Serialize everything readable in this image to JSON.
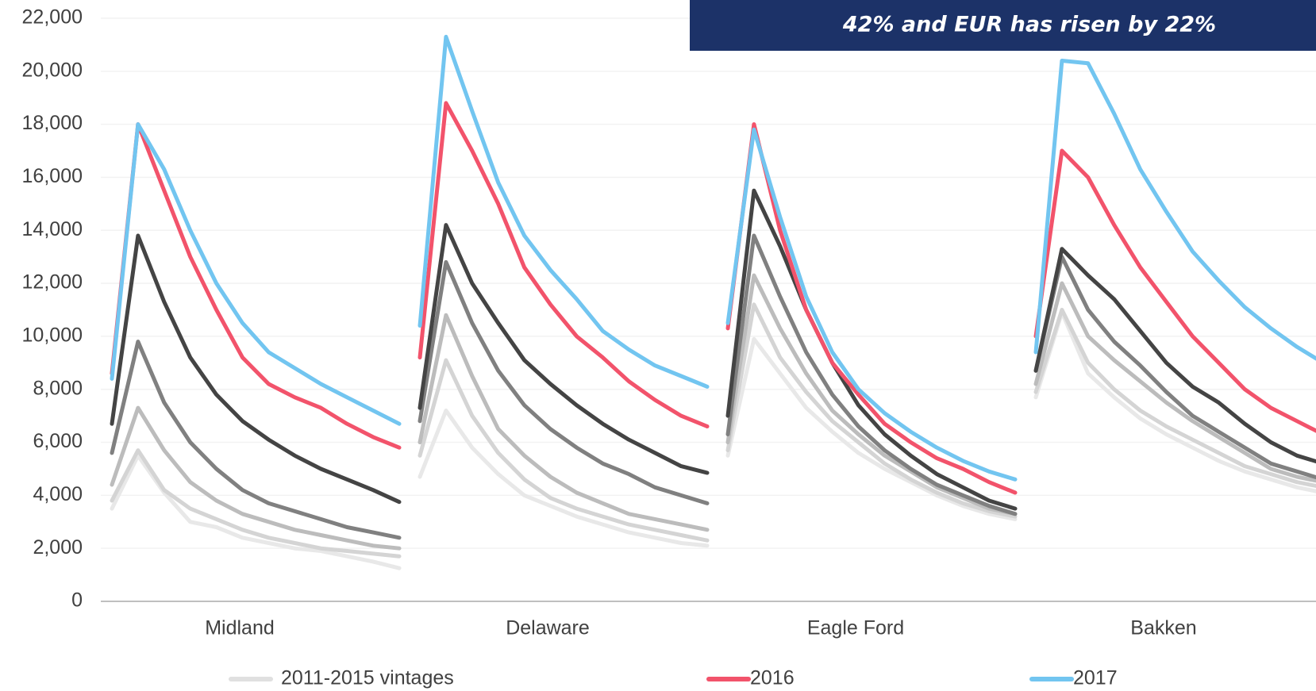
{
  "chart_data": {
    "type": "line",
    "title": "42% and EUR has risen by 22%",
    "categories": [
      "Midland",
      "Delaware",
      "Eagle Ford",
      "Bakken"
    ],
    "ylim": [
      0,
      22000
    ],
    "yticks": [
      0,
      {
        "value": 2000,
        "label": "2,000"
      },
      {
        "value": 4000,
        "label": "4,000"
      },
      {
        "value": 6000,
        "label": "6,000"
      },
      {
        "value": 8000,
        "label": "8,000"
      },
      {
        "value": 10000,
        "label": "10,000"
      },
      {
        "value": 12000,
        "label": "12,000"
      },
      {
        "value": 14000,
        "label": "14,000"
      },
      {
        "value": 16000,
        "label": "16,000"
      },
      {
        "value": 18000,
        "label": "18,000"
      },
      {
        "value": 20000,
        "label": "20,000"
      },
      {
        "value": 22000,
        "label": "22,000"
      }
    ],
    "grid": true,
    "legend": [
      {
        "name": "2011-2015 vintages",
        "color": "#e0e0e0"
      },
      {
        "name": "2016",
        "color": "#f2536b"
      },
      {
        "name": "2017",
        "color": "#72c5f0"
      }
    ],
    "series": [
      {
        "color": "#e8e8e8",
        "values": [
          [
            3500,
            5500,
            4100,
            3000,
            2800,
            2400,
            2200,
            2000,
            1900,
            1700,
            1500,
            1250
          ],
          [
            4700,
            7200,
            5800,
            4800,
            4000,
            3600,
            3200,
            2900,
            2600,
            2400,
            2200,
            2100
          ],
          [
            5500,
            9900,
            8600,
            7300,
            6400,
            5600,
            5000,
            4500,
            4000,
            3600,
            3300,
            3100
          ],
          [
            7700,
            10900,
            8600,
            7700,
            6900,
            6300,
            5800,
            5300,
            4900,
            4600,
            4300,
            4100
          ]
        ]
      },
      {
        "color": "#d4d4d4",
        "values": [
          [
            3800,
            5700,
            4200,
            3500,
            3100,
            2700,
            2400,
            2200,
            2000,
            1900,
            1800,
            1700
          ],
          [
            5500,
            9100,
            7000,
            5600,
            4600,
            3900,
            3500,
            3200,
            2900,
            2700,
            2500,
            2300
          ],
          [
            5700,
            11200,
            9200,
            7900,
            6800,
            6000,
            5200,
            4600,
            4100,
            3700,
            3400,
            3200
          ],
          [
            7900,
            11000,
            9000,
            8000,
            7200,
            6600,
            6100,
            5600,
            5100,
            4800,
            4500,
            4300
          ]
        ]
      },
      {
        "color": "#bcbcbc",
        "values": [
          [
            4400,
            7300,
            5700,
            4500,
            3800,
            3300,
            3000,
            2700,
            2500,
            2300,
            2100,
            2000
          ],
          [
            6000,
            10800,
            8500,
            6500,
            5500,
            4700,
            4100,
            3700,
            3300,
            3100,
            2900,
            2700
          ],
          [
            6000,
            12300,
            10300,
            8600,
            7200,
            6300,
            5500,
            4900,
            4300,
            3900,
            3500,
            3300
          ],
          [
            8200,
            12000,
            10000,
            9100,
            8300,
            7500,
            6800,
            6200,
            5600,
            5000,
            4700,
            4500
          ]
        ]
      },
      {
        "color": "#808080",
        "values": [
          [
            5600,
            9800,
            7500,
            6000,
            5000,
            4200,
            3700,
            3400,
            3100,
            2800,
            2600,
            2400
          ],
          [
            6800,
            12800,
            10500,
            8700,
            7400,
            6500,
            5800,
            5200,
            4800,
            4300,
            4000,
            3700
          ],
          [
            6300,
            13800,
            11500,
            9400,
            7800,
            6600,
            5700,
            5000,
            4400,
            4000,
            3600,
            3300
          ],
          [
            8700,
            13000,
            11000,
            9800,
            8900,
            7900,
            7000,
            6400,
            5800,
            5200,
            4900,
            4600
          ]
        ]
      },
      {
        "color": "#444444",
        "values": [
          [
            6700,
            13800,
            11300,
            9200,
            7800,
            6800,
            6100,
            5500,
            5000,
            4600,
            4200,
            3750
          ],
          [
            7300,
            14200,
            12000,
            10500,
            9100,
            8200,
            7400,
            6700,
            6100,
            5600,
            5100,
            4850
          ],
          [
            7000,
            15500,
            13400,
            11000,
            9000,
            7400,
            6300,
            5500,
            4800,
            4300,
            3800,
            3500
          ],
          [
            8700,
            13300,
            12300,
            11400,
            10200,
            9000,
            8100,
            7500,
            6700,
            6000,
            5500,
            5200
          ]
        ]
      },
      {
        "color": "#f2536b",
        "values": [
          [
            8600,
            18000,
            15500,
            13000,
            11000,
            9200,
            8200,
            7700,
            7300,
            6700,
            6200,
            5800
          ],
          [
            9200,
            18800,
            17000,
            15000,
            12600,
            11200,
            10000,
            9200,
            8300,
            7600,
            7000,
            6600
          ],
          [
            10300,
            18000,
            14000,
            11000,
            9000,
            7800,
            6700,
            6000,
            5400,
            5000,
            4500,
            4100
          ],
          [
            10000,
            17000,
            16000,
            14200,
            12600,
            11300,
            10000,
            9000,
            8000,
            7300,
            6800,
            6300
          ]
        ]
      },
      {
        "color": "#72c5f0",
        "values": [
          [
            8400,
            18000,
            16300,
            14000,
            12000,
            10500,
            9400,
            8800,
            8200,
            7700,
            7200,
            6700
          ],
          [
            10400,
            21300,
            18500,
            15800,
            13800,
            12500,
            11400,
            10200,
            9500,
            8900,
            8500,
            8100
          ],
          [
            10500,
            17800,
            14500,
            11500,
            9400,
            8000,
            7100,
            6400,
            5800,
            5300,
            4900,
            4600
          ],
          [
            9400,
            20400,
            20300,
            18400,
            16300,
            14700,
            13200,
            12100,
            11100,
            10300,
            9600,
            9000
          ]
        ]
      }
    ]
  }
}
